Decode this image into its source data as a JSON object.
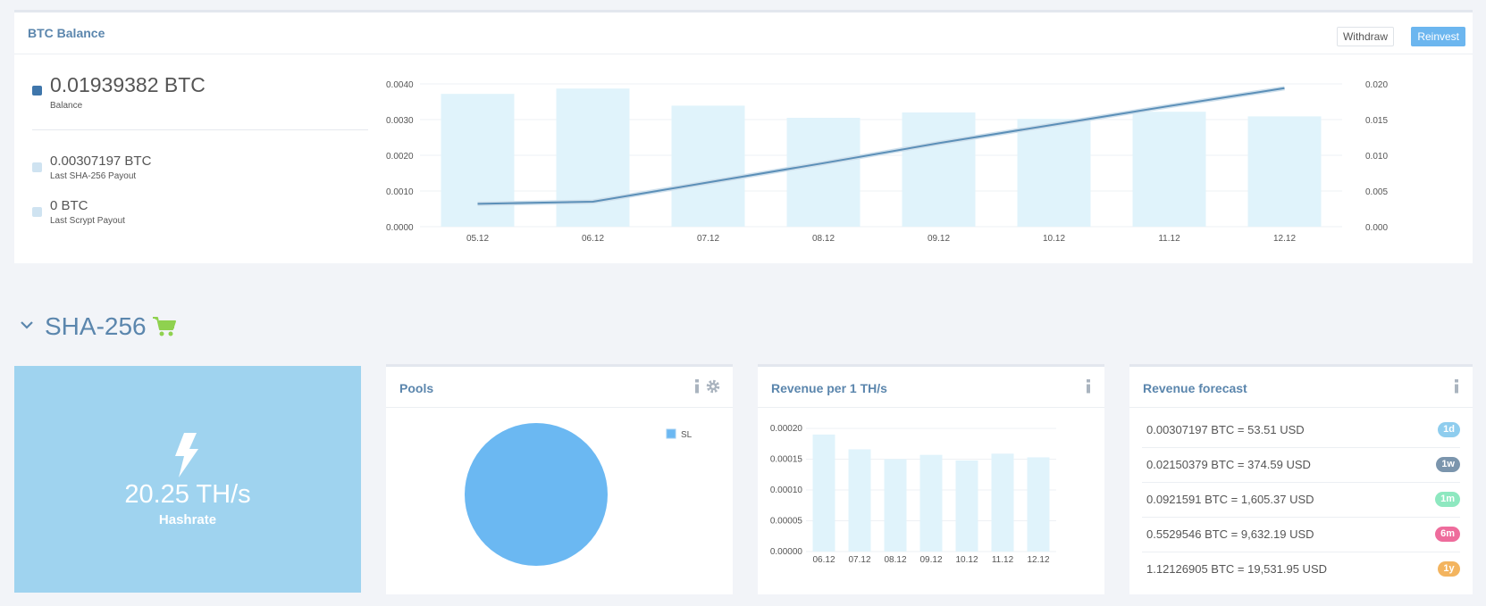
{
  "balance": {
    "title": "BTC Balance",
    "withdraw_label": "Withdraw",
    "reinvest_label": "Reinvest",
    "main_value": "0.01939382 BTC",
    "main_label": "Balance",
    "sha_value": "0.00307197 BTC",
    "sha_label": "Last SHA-256 Payout",
    "scrypt_value": "0 BTC",
    "scrypt_label": "Last Scrypt Payout",
    "colors": {
      "accent": "#3f76ab",
      "bar": "#e0f3fb",
      "line": "#5b8fb8",
      "button": "#6cb6ef"
    }
  },
  "section": {
    "title": "SHA-256",
    "cart_icon": "cart-icon",
    "chevron_icon": "chevron-down-icon"
  },
  "hashrate": {
    "value": "20.25 TH/s",
    "label": "Hashrate",
    "icon": "bolt-icon",
    "color": "#9fd3ef"
  },
  "pools": {
    "title": "Pools",
    "icons": [
      "info-icon",
      "gear-icon"
    ]
  },
  "revenue": {
    "title": "Revenue per 1 TH/s",
    "icons": [
      "info-icon"
    ]
  },
  "forecast": {
    "title": "Revenue forecast",
    "icons": [
      "info-icon"
    ],
    "rows": [
      {
        "text": "0.00307197 BTC = 53.51 USD",
        "badge": "1d",
        "color": "#8fcdee"
      },
      {
        "text": "0.02150379 BTC = 374.59 USD",
        "badge": "1w",
        "color": "#7b95ad"
      },
      {
        "text": "0.0921591 BTC = 1,605.37 USD",
        "badge": "1m",
        "color": "#8ee8c0"
      },
      {
        "text": "0.5529546 BTC = 9,632.19 USD",
        "badge": "6m",
        "color": "#ee6c9c"
      },
      {
        "text": "1.12126905 BTC = 19,531.95 USD",
        "badge": "1y",
        "color": "#f3b45f"
      }
    ]
  },
  "chart_data": [
    {
      "type": "bar",
      "categories": [
        "05.12",
        "06.12",
        "07.12",
        "08.12",
        "09.12",
        "10.12",
        "11.12",
        "12.12"
      ],
      "series": [
        {
          "values": [
            0.00372,
            0.00387,
            0.00339,
            0.00305,
            0.0032,
            0.00302,
            0.00322,
            0.00309
          ]
        },
        {
          "type": "line",
          "values": [
            0.0032,
            0.0035,
            0.0062,
            0.0089,
            0.0117,
            0.0143,
            0.0169,
            0.0194
          ]
        }
      ],
      "ylim": [
        0,
        0.004
      ],
      "y2lim": [
        0,
        0.02
      ],
      "yticks": [
        "0.0000",
        "0.0010",
        "0.0020",
        "0.0030",
        "0.0040"
      ],
      "y2ticks": [
        "0.000",
        "0.005",
        "0.010",
        "0.015",
        "0.020"
      ],
      "grid": true
    },
    {
      "type": "pie",
      "legend": [
        "SL"
      ],
      "values": [
        100
      ],
      "colors": [
        "#6bb8f2"
      ],
      "legend_position": "top-right"
    },
    {
      "type": "bar",
      "categories": [
        "06.12",
        "07.12",
        "08.12",
        "09.12",
        "10.12",
        "11.12",
        "12.12"
      ],
      "values": [
        0.00019,
        0.000166,
        0.00015,
        0.000157,
        0.000148,
        0.000159,
        0.000153
      ],
      "ylim": [
        0,
        0.0002
      ],
      "yticks": [
        "0.00000",
        "0.00005",
        "0.00010",
        "0.00015",
        "0.00020"
      ],
      "grid": true
    }
  ]
}
